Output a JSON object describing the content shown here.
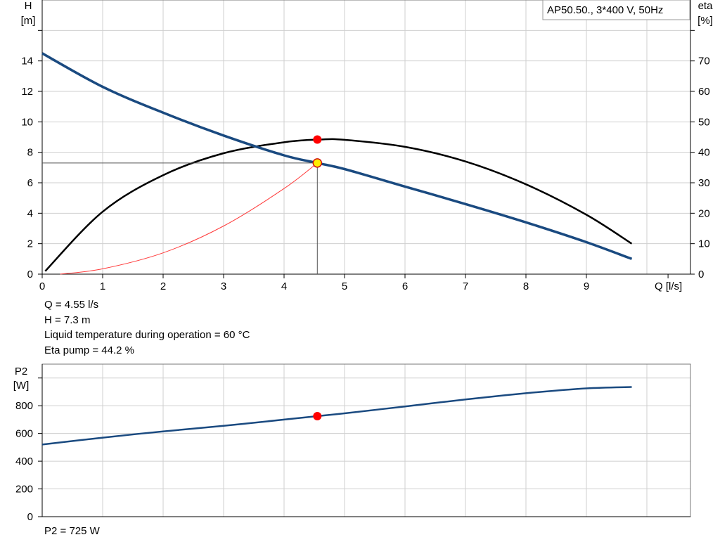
{
  "colors": {
    "head_curve": "#1a4a80",
    "eta_curve": "#000000",
    "system_curve": "#ff3b3b",
    "power_curve": "#1a4a80",
    "duty_point_fill": "#ff0000",
    "operating_marker_fill": "#ffee00",
    "operating_marker_stroke": "#d01010",
    "grid": "#cfcfcf",
    "legend_border": "#999999"
  },
  "chart_data": [
    {
      "type": "line",
      "legend_text": "AP50.50., 3*400 V, 50Hz",
      "legend_position": "top-right",
      "grid": true,
      "x_axis": {
        "label": "Q [l/s]",
        "lim": [
          0,
          10.2
        ],
        "ticks": [
          0,
          1,
          2,
          3,
          4,
          5,
          6,
          7,
          8,
          9
        ]
      },
      "y_axis_left": {
        "label_line1": "H",
        "label_line2": "[m]",
        "lim": [
          0,
          18
        ],
        "ticks": [
          0,
          2,
          4,
          6,
          8,
          10,
          12,
          14
        ]
      },
      "y_axis_right": {
        "label_line1": "eta",
        "label_line2": "[%]",
        "lim": [
          0,
          90
        ],
        "ticks": [
          0,
          10,
          20,
          30,
          40,
          50,
          60,
          70
        ]
      },
      "series": [
        {
          "key": "head",
          "axis": "left",
          "x": [
            0,
            1,
            2,
            3,
            4,
            4.55,
            5,
            6,
            7,
            8,
            9,
            9.75
          ],
          "y": [
            14.5,
            12.3,
            10.6,
            9.1,
            7.8,
            7.3,
            6.9,
            5.75,
            4.6,
            3.4,
            2.1,
            1.0
          ]
        },
        {
          "key": "efficiency",
          "axis": "right",
          "x": [
            0.05,
            1,
            2,
            3,
            4,
            4.6,
            5,
            6,
            7,
            8,
            9,
            9.75
          ],
          "y": [
            1.0,
            20.5,
            32.5,
            39.7,
            43.3,
            44.2,
            44.1,
            41.8,
            37.0,
            29.5,
            19.5,
            10.0
          ]
        },
        {
          "key": "system",
          "axis": "left",
          "x": [
            0.3,
            1,
            2,
            3,
            4,
            4.55
          ],
          "y": [
            0.0,
            0.35,
            1.4,
            3.16,
            5.62,
            7.3
          ]
        }
      ],
      "duty_point": {
        "q": 4.55,
        "h": 7.3,
        "eta": 44.2
      }
    },
    {
      "type": "line",
      "grid": true,
      "x_axis": {
        "lim": [
          0,
          10.2
        ],
        "ticks": [
          0,
          1,
          2,
          3,
          4,
          5,
          6,
          7,
          8,
          9
        ]
      },
      "y_axis_left": {
        "label_line1": "P2",
        "label_line2": "[W]",
        "lim": [
          0,
          1100
        ],
        "ticks": [
          0,
          200,
          400,
          600,
          800
        ]
      },
      "series": [
        {
          "key": "power",
          "x": [
            0,
            1,
            2,
            3,
            4,
            4.55,
            5,
            6,
            7,
            8,
            9,
            9.75
          ],
          "y": [
            520,
            570,
            615,
            655,
            700,
            725,
            745,
            795,
            845,
            890,
            925,
            935
          ]
        }
      ],
      "duty_point": {
        "q": 4.55,
        "p2": 725
      }
    }
  ],
  "info": {
    "q": "Q = 4.55 l/s",
    "h": "H = 7.3 m",
    "temperature": "Liquid temperature during operation = 60 °C",
    "eta": "Eta pump = 44.2 %",
    "p2": "P2 = 725 W"
  }
}
